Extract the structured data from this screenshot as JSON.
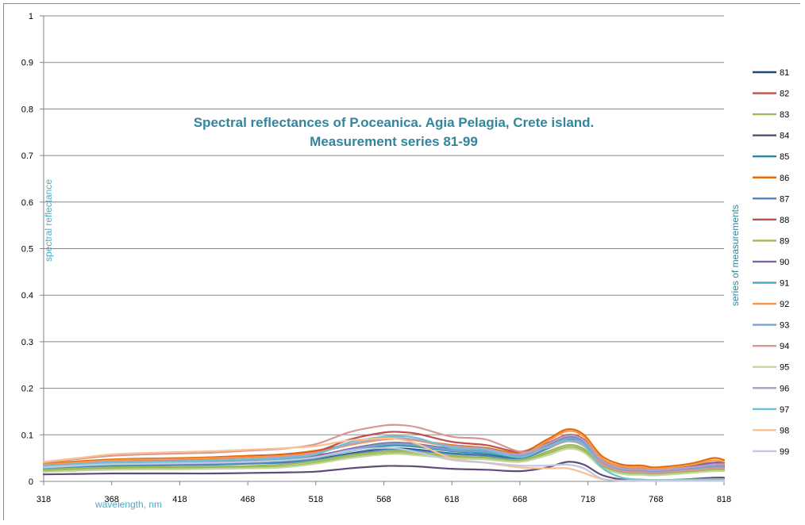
{
  "chart_data": {
    "type": "line",
    "title_line1": "Spectral reflectances of P.oceanica. Agia Pelagia, Crete island.",
    "title_line2": "Measurement series 81-99",
    "ylabel": "spectral reflectance",
    "xlabel": "wavelength, nm",
    "legend_title": "series of measurements",
    "legend_position": "right",
    "grid": true,
    "xlim": [
      318,
      818
    ],
    "ylim": [
      0,
      1
    ],
    "x_ticks": [
      318,
      368,
      418,
      468,
      518,
      568,
      618,
      668,
      718,
      768,
      818
    ],
    "y_ticks": [
      "0",
      "0.1",
      "0.2",
      "0.3",
      "0.4",
      "0.5",
      "0.6",
      "0.7",
      "0.8",
      "0.9",
      "1"
    ],
    "x": [
      318,
      343,
      368,
      393,
      418,
      443,
      468,
      493,
      518,
      543,
      568,
      580,
      593,
      618,
      643,
      668,
      688,
      703,
      715,
      728,
      743,
      758,
      768,
      793,
      810,
      818
    ],
    "series": [
      {
        "name": "81",
        "color": "#1f497d",
        "values": [
          0.028,
          0.031,
          0.034,
          0.035,
          0.036,
          0.037,
          0.039,
          0.041,
          0.047,
          0.06,
          0.07,
          0.071,
          0.068,
          0.06,
          0.056,
          0.05,
          0.072,
          0.09,
          0.08,
          0.04,
          0.024,
          0.022,
          0.02,
          0.026,
          0.03,
          0.03
        ]
      },
      {
        "name": "82",
        "color": "#c0504d",
        "values": [
          0.033,
          0.037,
          0.04,
          0.041,
          0.042,
          0.044,
          0.046,
          0.049,
          0.056,
          0.068,
          0.08,
          0.081,
          0.078,
          0.068,
          0.063,
          0.055,
          0.08,
          0.098,
          0.088,
          0.045,
          0.028,
          0.026,
          0.024,
          0.03,
          0.034,
          0.034
        ]
      },
      {
        "name": "83",
        "color": "#9bbb59",
        "values": [
          0.022,
          0.025,
          0.027,
          0.028,
          0.028,
          0.029,
          0.03,
          0.032,
          0.04,
          0.052,
          0.06,
          0.061,
          0.058,
          0.052,
          0.049,
          0.044,
          0.06,
          0.074,
          0.066,
          0.032,
          0.018,
          0.016,
          0.015,
          0.02,
          0.024,
          0.024
        ]
      },
      {
        "name": "84",
        "color": "#604a7b",
        "values": [
          0.015,
          0.016,
          0.017,
          0.017,
          0.017,
          0.017,
          0.018,
          0.019,
          0.021,
          0.028,
          0.033,
          0.033,
          0.032,
          0.027,
          0.025,
          0.022,
          0.03,
          0.042,
          0.036,
          0.014,
          0.004,
          0.002,
          0.002,
          0.005,
          0.008,
          0.008
        ]
      },
      {
        "name": "85",
        "color": "#31859c",
        "values": [
          0.03,
          0.034,
          0.037,
          0.038,
          0.039,
          0.04,
          0.042,
          0.045,
          0.052,
          0.065,
          0.076,
          0.077,
          0.074,
          0.065,
          0.06,
          0.053,
          0.076,
          0.094,
          0.084,
          0.042,
          0.026,
          0.024,
          0.022,
          0.028,
          0.032,
          0.032
        ]
      },
      {
        "name": "86",
        "color": "#e36c09",
        "values": [
          0.038,
          0.043,
          0.047,
          0.049,
          0.05,
          0.052,
          0.055,
          0.058,
          0.066,
          0.08,
          0.09,
          0.092,
          0.088,
          0.078,
          0.072,
          0.062,
          0.09,
          0.112,
          0.1,
          0.055,
          0.036,
          0.034,
          0.03,
          0.038,
          0.05,
          0.046
        ]
      },
      {
        "name": "87",
        "color": "#4f81bd",
        "values": [
          0.027,
          0.03,
          0.033,
          0.034,
          0.035,
          0.036,
          0.038,
          0.04,
          0.046,
          0.058,
          0.068,
          0.069,
          0.066,
          0.059,
          0.055,
          0.049,
          0.07,
          0.087,
          0.078,
          0.039,
          0.023,
          0.021,
          0.019,
          0.025,
          0.029,
          0.029
        ]
      },
      {
        "name": "88",
        "color": "#c0504d",
        "values": [
          0.035,
          0.04,
          0.044,
          0.046,
          0.047,
          0.049,
          0.052,
          0.056,
          0.064,
          0.09,
          0.105,
          0.106,
          0.102,
          0.085,
          0.078,
          0.064,
          0.082,
          0.1,
          0.09,
          0.046,
          0.03,
          0.028,
          0.026,
          0.034,
          0.04,
          0.04
        ]
      },
      {
        "name": "89",
        "color": "#9bbb59",
        "values": [
          0.025,
          0.028,
          0.03,
          0.031,
          0.031,
          0.032,
          0.033,
          0.036,
          0.044,
          0.056,
          0.064,
          0.065,
          0.062,
          0.055,
          0.051,
          0.046,
          0.064,
          0.078,
          0.07,
          0.035,
          0.02,
          0.018,
          0.017,
          0.022,
          0.026,
          0.026
        ]
      },
      {
        "name": "90",
        "color": "#8064a2",
        "values": [
          0.032,
          0.036,
          0.039,
          0.04,
          0.041,
          0.042,
          0.044,
          0.047,
          0.054,
          0.07,
          0.082,
          0.083,
          0.08,
          0.07,
          0.066,
          0.056,
          0.078,
          0.096,
          0.086,
          0.044,
          0.027,
          0.025,
          0.023,
          0.032,
          0.04,
          0.04
        ]
      },
      {
        "name": "91",
        "color": "#4bacc6",
        "values": [
          0.029,
          0.033,
          0.036,
          0.037,
          0.038,
          0.039,
          0.041,
          0.044,
          0.05,
          0.066,
          0.078,
          0.079,
          0.076,
          0.066,
          0.062,
          0.054,
          0.074,
          0.092,
          0.082,
          0.041,
          0.025,
          0.023,
          0.021,
          0.027,
          0.031,
          0.031
        ]
      },
      {
        "name": "92",
        "color": "#f79646",
        "values": [
          0.036,
          0.041,
          0.045,
          0.047,
          0.048,
          0.05,
          0.052,
          0.055,
          0.062,
          0.078,
          0.09,
          0.091,
          0.087,
          0.074,
          0.068,
          0.058,
          0.086,
          0.108,
          0.096,
          0.05,
          0.032,
          0.03,
          0.027,
          0.035,
          0.045,
          0.042
        ]
      },
      {
        "name": "93",
        "color": "#7f9fcf",
        "values": [
          0.031,
          0.035,
          0.038,
          0.039,
          0.04,
          0.041,
          0.043,
          0.046,
          0.052,
          0.068,
          0.08,
          0.081,
          0.078,
          0.068,
          0.064,
          0.055,
          0.075,
          0.093,
          0.083,
          0.042,
          0.026,
          0.024,
          0.022,
          0.028,
          0.032,
          0.032
        ]
      },
      {
        "name": "94",
        "color": "#d99694",
        "values": [
          0.04,
          0.048,
          0.055,
          0.058,
          0.06,
          0.062,
          0.066,
          0.07,
          0.08,
          0.106,
          0.12,
          0.121,
          0.116,
          0.096,
          0.09,
          0.064,
          0.072,
          0.086,
          0.076,
          0.038,
          0.022,
          0.02,
          0.018,
          0.024,
          0.028,
          0.028
        ]
      },
      {
        "name": "95",
        "color": "#c3d69b",
        "values": [
          0.02,
          0.023,
          0.025,
          0.026,
          0.026,
          0.027,
          0.028,
          0.03,
          0.038,
          0.05,
          0.058,
          0.059,
          0.056,
          0.05,
          0.047,
          0.042,
          0.056,
          0.07,
          0.062,
          0.03,
          0.016,
          0.014,
          0.013,
          0.018,
          0.022,
          0.022
        ]
      },
      {
        "name": "96",
        "color": "#b2a2c7",
        "values": [
          0.034,
          0.038,
          0.042,
          0.043,
          0.044,
          0.046,
          0.048,
          0.052,
          0.06,
          0.08,
          0.092,
          0.093,
          0.089,
          0.076,
          0.07,
          0.058,
          0.08,
          0.098,
          0.088,
          0.045,
          0.028,
          0.026,
          0.024,
          0.03,
          0.036,
          0.036
        ]
      },
      {
        "name": "97",
        "color": "#6fc0d4",
        "values": [
          0.033,
          0.037,
          0.041,
          0.042,
          0.043,
          0.045,
          0.047,
          0.05,
          0.058,
          0.084,
          0.096,
          0.097,
          0.093,
          0.072,
          0.068,
          0.052,
          0.074,
          0.088,
          0.078,
          0.03,
          0.008,
          0.004,
          0.003,
          0.004,
          0.005,
          0.005
        ]
      },
      {
        "name": "98",
        "color": "#fac090",
        "values": [
          0.042,
          0.05,
          0.058,
          0.061,
          0.063,
          0.065,
          0.068,
          0.071,
          0.076,
          0.088,
          0.092,
          0.09,
          0.08,
          0.05,
          0.04,
          0.03,
          0.028,
          0.028,
          0.018,
          0.005,
          0.002,
          0.002,
          0.002,
          0.002,
          0.002,
          0.002
        ]
      },
      {
        "name": "99",
        "color": "#c4c8de",
        "values": [
          0.03,
          0.034,
          0.037,
          0.038,
          0.039,
          0.04,
          0.042,
          0.045,
          0.052,
          0.066,
          0.072,
          0.07,
          0.062,
          0.046,
          0.04,
          0.034,
          0.034,
          0.036,
          0.028,
          0.006,
          0.001,
          0.001,
          0.001,
          0.001,
          0.001,
          0.001
        ]
      }
    ]
  }
}
